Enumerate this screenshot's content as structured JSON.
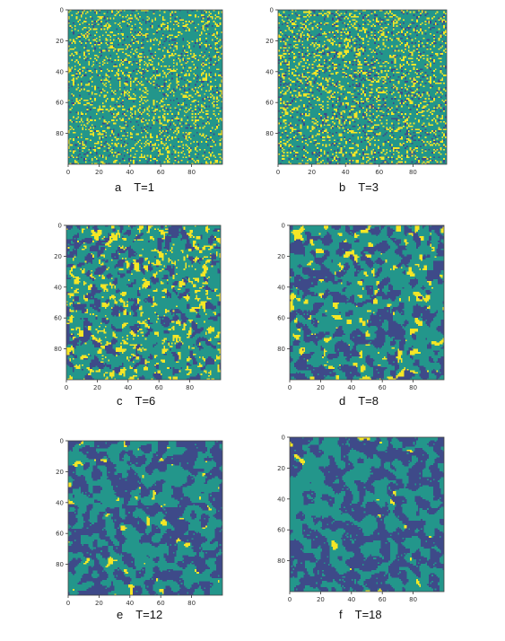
{
  "chart_data": [
    {
      "type": "heatmap",
      "letter": "a",
      "label": "T=1",
      "xticks": [
        "0",
        "20",
        "40",
        "60",
        "80"
      ],
      "yticks": [
        "0",
        "20",
        "40",
        "60",
        "80"
      ],
      "xlim": [
        0,
        100
      ],
      "ylim": [
        0,
        100
      ],
      "cells": 100,
      "proportions": {
        "teal": 0.76,
        "yellow": 0.18,
        "navy": 0.06
      },
      "blob_smoothing": 0,
      "colors": {
        "teal": "#23968b",
        "yellow": "#f5e626",
        "navy": "#3e4a89"
      }
    },
    {
      "type": "heatmap",
      "letter": "b",
      "label": "T=3",
      "xticks": [
        "0",
        "20",
        "40",
        "60",
        "80"
      ],
      "yticks": [
        "0",
        "20",
        "40",
        "60",
        "80"
      ],
      "xlim": [
        0,
        100
      ],
      "ylim": [
        0,
        100
      ],
      "cells": 100,
      "proportions": {
        "teal": 0.7,
        "yellow": 0.2,
        "navy": 0.1
      },
      "blob_smoothing": 0,
      "colors": {
        "teal": "#23968b",
        "yellow": "#f5e626",
        "navy": "#3e4a89"
      }
    },
    {
      "type": "heatmap",
      "letter": "c",
      "label": "T=6",
      "xticks": [
        "0",
        "20",
        "40",
        "60",
        "80"
      ],
      "yticks": [
        "0",
        "20",
        "40",
        "60",
        "80"
      ],
      "xlim": [
        0,
        100
      ],
      "ylim": [
        0,
        100
      ],
      "cells": 100,
      "proportions": {
        "teal": 0.6,
        "yellow": 0.18,
        "navy": 0.22
      },
      "blob_smoothing": 2,
      "colors": {
        "teal": "#23968b",
        "yellow": "#f5e626",
        "navy": "#3e4a89"
      }
    },
    {
      "type": "heatmap",
      "letter": "d",
      "label": "T=8",
      "xticks": [
        "0",
        "20",
        "40",
        "60",
        "80"
      ],
      "yticks": [
        "0",
        "20",
        "40",
        "60",
        "80"
      ],
      "xlim": [
        0,
        100
      ],
      "ylim": [
        0,
        100
      ],
      "cells": 100,
      "proportions": {
        "teal": 0.52,
        "yellow": 0.12,
        "navy": 0.36
      },
      "blob_smoothing": 3,
      "colors": {
        "teal": "#23968b",
        "yellow": "#f5e626",
        "navy": "#3e4a89"
      }
    },
    {
      "type": "heatmap",
      "letter": "e",
      "label": "T=12",
      "xticks": [
        "0",
        "20",
        "40",
        "60",
        "80"
      ],
      "yticks": [
        "0",
        "20",
        "40",
        "60",
        "80"
      ],
      "xlim": [
        0,
        100
      ],
      "ylim": [
        0,
        100
      ],
      "cells": 100,
      "proportions": {
        "teal": 0.48,
        "yellow": 0.04,
        "navy": 0.48
      },
      "blob_smoothing": 4,
      "colors": {
        "teal": "#23968b",
        "yellow": "#f5e626",
        "navy": "#3e4a89"
      }
    },
    {
      "type": "heatmap",
      "letter": "f",
      "label": "T=18",
      "xticks": [
        "0",
        "20",
        "40",
        "60",
        "80"
      ],
      "yticks": [
        "0",
        "20",
        "40",
        "60",
        "80"
      ],
      "xlim": [
        0,
        100
      ],
      "ylim": [
        0,
        100
      ],
      "cells": 100,
      "proportions": {
        "teal": 0.46,
        "yellow": 0.02,
        "navy": 0.52
      },
      "blob_smoothing": 5,
      "colors": {
        "teal": "#23968b",
        "yellow": "#f5e626",
        "navy": "#3e4a89"
      }
    }
  ]
}
